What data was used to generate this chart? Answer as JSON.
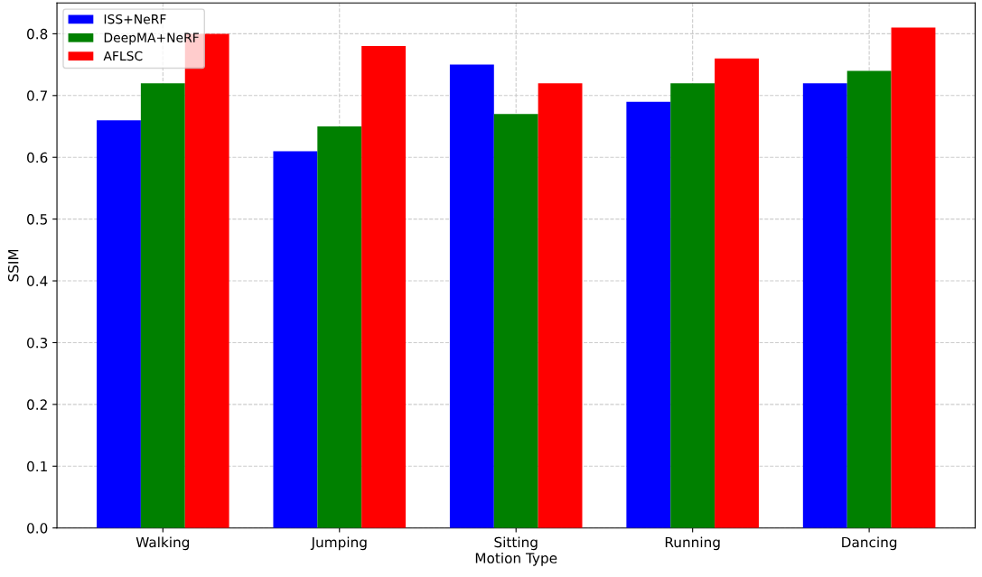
{
  "chart_data": {
    "type": "bar",
    "xlabel": "Motion Type",
    "ylabel": "SSIM",
    "categories": [
      "Walking",
      "Jumping",
      "Sitting",
      "Running",
      "Dancing"
    ],
    "series": [
      {
        "name": "ISS+NeRF",
        "color": "#0000ff",
        "values": [
          0.66,
          0.61,
          0.75,
          0.69,
          0.72
        ]
      },
      {
        "name": "DeepMA+NeRF",
        "color": "#008000",
        "values": [
          0.72,
          0.65,
          0.67,
          0.72,
          0.74
        ]
      },
      {
        "name": "AFLSC",
        "color": "#ff0000",
        "values": [
          0.8,
          0.78,
          0.72,
          0.76,
          0.81
        ]
      }
    ],
    "ylim": [
      0,
      0.85
    ],
    "yticks": [
      {
        "value": 0,
        "label": "0.0"
      },
      0.1,
      0.2,
      0.3,
      0.4,
      0.5,
      0.6,
      0.7,
      0.8
    ],
    "grid": true,
    "legend": "top left"
  }
}
